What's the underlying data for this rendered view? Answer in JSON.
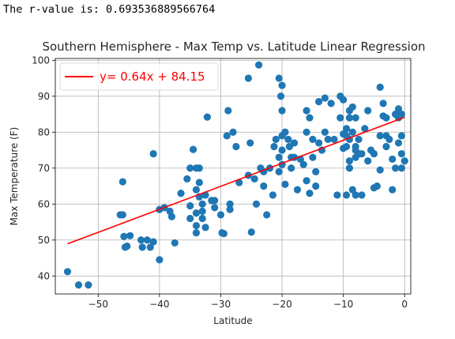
{
  "output_text": "The r-value is: 0.693536889566764",
  "chart_data": {
    "type": "scatter",
    "title": "Southern Hemisphere - Max Temp vs. Latitude Linear Regression",
    "xlabel": "Latitude",
    "ylabel": "Max Temperature (F)",
    "xlim": [
      -57,
      1
    ],
    "ylim": [
      35,
      100.5
    ],
    "xticks": [
      -50,
      -40,
      -30,
      -20,
      -10,
      0
    ],
    "yticks": [
      40,
      50,
      60,
      70,
      80,
      90,
      100
    ],
    "grid": true,
    "legend_position": "top-left",
    "colors": {
      "points": "#1f77b4",
      "regression": "#ff0000"
    },
    "regression": {
      "label": "y= 0.64x + 84.15",
      "slope": 0.64,
      "intercept": 84.15,
      "x_range": [
        -55,
        0
      ]
    },
    "points": [
      [
        -55,
        41.2
      ],
      [
        -53.2,
        37.5
      ],
      [
        -51.6,
        37.5
      ],
      [
        -46.4,
        57
      ],
      [
        -46,
        57
      ],
      [
        -46,
        66.2
      ],
      [
        -45.8,
        51
      ],
      [
        -45.6,
        48
      ],
      [
        -45.3,
        48.3
      ],
      [
        -44.8,
        51.2
      ],
      [
        -43,
        50
      ],
      [
        -42.8,
        48
      ],
      [
        -42,
        50
      ],
      [
        -41.5,
        48
      ],
      [
        -41,
        49.5
      ],
      [
        -41,
        74
      ],
      [
        -40,
        44.5
      ],
      [
        -40,
        58.5
      ],
      [
        -39.2,
        59
      ],
      [
        -38.3,
        58
      ],
      [
        -38,
        56.5
      ],
      [
        -37.5,
        49.2
      ],
      [
        -36.5,
        63
      ],
      [
        -35.5,
        67
      ],
      [
        -35,
        70
      ],
      [
        -35,
        59.5
      ],
      [
        -35,
        56
      ],
      [
        -34.5,
        75.2
      ],
      [
        -34,
        70
      ],
      [
        -34,
        64
      ],
      [
        -34,
        57.5
      ],
      [
        -34,
        54
      ],
      [
        -34,
        52
      ],
      [
        -33.5,
        70
      ],
      [
        -33.5,
        66
      ],
      [
        -33.5,
        62
      ],
      [
        -33,
        60
      ],
      [
        -33,
        58
      ],
      [
        -33,
        56
      ],
      [
        -32.5,
        62.5
      ],
      [
        -32.5,
        53.5
      ],
      [
        -32.2,
        84.2
      ],
      [
        -31.5,
        61
      ],
      [
        -31,
        61
      ],
      [
        -31,
        59
      ],
      [
        -30,
        57
      ],
      [
        -29.8,
        52
      ],
      [
        -29.5,
        51.8
      ],
      [
        -29,
        79
      ],
      [
        -28.8,
        86
      ],
      [
        -28.5,
        60
      ],
      [
        -28.5,
        58.5
      ],
      [
        -28,
        80
      ],
      [
        -27.5,
        76
      ],
      [
        -27,
        66
      ],
      [
        -25.5,
        95
      ],
      [
        -25.5,
        68
      ],
      [
        -25.2,
        77
      ],
      [
        -25,
        52.2
      ],
      [
        -24.5,
        67
      ],
      [
        -24.2,
        60
      ],
      [
        -23.8,
        98.7
      ],
      [
        -23.5,
        70
      ],
      [
        -23,
        69
      ],
      [
        -23,
        65
      ],
      [
        -22.5,
        57
      ],
      [
        -22,
        70
      ],
      [
        -21.5,
        62.5
      ],
      [
        -21.3,
        76
      ],
      [
        -21,
        78
      ],
      [
        -20.5,
        95
      ],
      [
        -20.5,
        73
      ],
      [
        -20.5,
        69
      ],
      [
        -20.2,
        90
      ],
      [
        -20,
        93
      ],
      [
        -20,
        86
      ],
      [
        -20,
        79
      ],
      [
        -20,
        75
      ],
      [
        -20,
        71
      ],
      [
        -19.5,
        80
      ],
      [
        -19.5,
        65.5
      ],
      [
        -19,
        78
      ],
      [
        -18.8,
        76
      ],
      [
        -18.5,
        73
      ],
      [
        -18.5,
        70
      ],
      [
        -18,
        77
      ],
      [
        -18,
        73
      ],
      [
        -17.5,
        64
      ],
      [
        -17,
        72.5
      ],
      [
        -16.5,
        71
      ],
      [
        -16,
        86
      ],
      [
        -16,
        80
      ],
      [
        -16,
        66.5
      ],
      [
        -15.5,
        84
      ],
      [
        -15.5,
        63
      ],
      [
        -15,
        78
      ],
      [
        -15,
        73
      ],
      [
        -14.5,
        69
      ],
      [
        -14.5,
        65
      ],
      [
        -14,
        88.5
      ],
      [
        -14,
        77
      ],
      [
        -13.5,
        75
      ],
      [
        -13,
        89.5
      ],
      [
        -13,
        80
      ],
      [
        -12.5,
        78
      ],
      [
        -12,
        88
      ],
      [
        -11.5,
        78
      ],
      [
        -11,
        62.5
      ],
      [
        -10.5,
        90
      ],
      [
        -10.5,
        84
      ],
      [
        -10,
        89
      ],
      [
        -10,
        79.5
      ],
      [
        -10,
        75.5
      ],
      [
        -9.5,
        81
      ],
      [
        -9.5,
        79
      ],
      [
        -9.5,
        76
      ],
      [
        -9.5,
        62.5
      ],
      [
        -9,
        86
      ],
      [
        -9,
        84
      ],
      [
        -9,
        78
      ],
      [
        -9,
        72
      ],
      [
        -9,
        70
      ],
      [
        -8.5,
        87
      ],
      [
        -8.5,
        80
      ],
      [
        -8.5,
        64
      ],
      [
        -8,
        84
      ],
      [
        -8,
        76
      ],
      [
        -8,
        75
      ],
      [
        -8,
        73
      ],
      [
        -8,
        62.5
      ],
      [
        -7.5,
        78
      ],
      [
        -7.5,
        74
      ],
      [
        -7,
        74
      ],
      [
        -7,
        62.5
      ],
      [
        -6.5,
        81
      ],
      [
        -6,
        86
      ],
      [
        -6,
        72
      ],
      [
        -5.5,
        75
      ],
      [
        -5,
        74
      ],
      [
        -5,
        64.5
      ],
      [
        -4.5,
        65
      ],
      [
        -4,
        92.5
      ],
      [
        -4,
        79
      ],
      [
        -4,
        69.5
      ],
      [
        -3.5,
        88
      ],
      [
        -3.5,
        84.5
      ],
      [
        -3,
        84
      ],
      [
        -3,
        79
      ],
      [
        -3,
        76
      ],
      [
        -2.5,
        78
      ],
      [
        -2,
        64
      ],
      [
        -2,
        72.5
      ],
      [
        -1.5,
        85
      ],
      [
        -1.5,
        70
      ],
      [
        -1,
        86.5
      ],
      [
        -1,
        84
      ],
      [
        -1,
        77
      ],
      [
        -0.5,
        85
      ],
      [
        -0.5,
        79
      ],
      [
        -0.5,
        74
      ],
      [
        -0.5,
        70
      ],
      [
        0,
        72
      ]
    ]
  }
}
